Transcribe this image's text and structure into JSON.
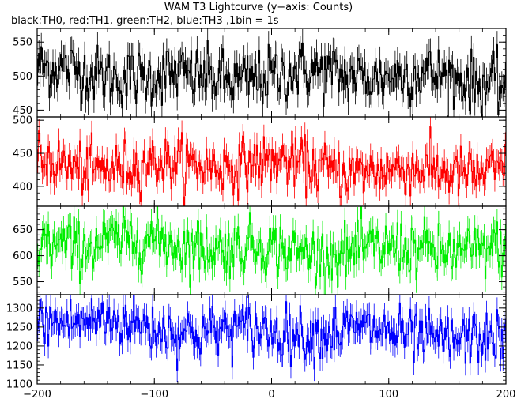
{
  "title": "WAM T3 Lightcurve (y−axis: Counts)",
  "subtitle": "black:TH0, red:TH1, green:TH2, blue:TH3 ,1bin = 1s",
  "chart_data": {
    "type": "line",
    "bin_size": 1,
    "xlim": [
      -200,
      200
    ],
    "x_ticks": [
      -200,
      -100,
      0,
      100,
      200
    ],
    "x_tick_labels": [
      "−200",
      "−100",
      "0",
      "100",
      "200"
    ],
    "series": [
      {
        "name": "TH0",
        "color": "#000000",
        "ylim": [
          440,
          570
        ],
        "y_ticks": [
          450,
          500,
          550
        ],
        "y_tick_labels": [
          "450",
          "500",
          "550"
        ],
        "mean": 500,
        "noise": 22,
        "trend": -8
      },
      {
        "name": "TH1",
        "color": "#ff0000",
        "ylim": [
          370,
          505
        ],
        "y_ticks": [
          400,
          450,
          500
        ],
        "y_tick_labels": [
          "400",
          "450",
          "500"
        ],
        "mean": 430,
        "noise": 20,
        "trend": -12
      },
      {
        "name": "TH2",
        "color": "#00ee00",
        "ylim": [
          525,
          695
        ],
        "y_ticks": [
          550,
          600,
          650
        ],
        "y_tick_labels": [
          "550",
          "600",
          "650"
        ],
        "mean": 615,
        "noise": 27,
        "trend": -20
      },
      {
        "name": "TH3",
        "color": "#0000ff",
        "ylim": [
          1100,
          1335
        ],
        "y_ticks": [
          1100,
          1150,
          1200,
          1250,
          1300
        ],
        "y_tick_labels": [
          "1100",
          "1150",
          "1200",
          "1250",
          "1300"
        ],
        "mean": 1240,
        "noise": 35,
        "trend": -50
      }
    ]
  }
}
